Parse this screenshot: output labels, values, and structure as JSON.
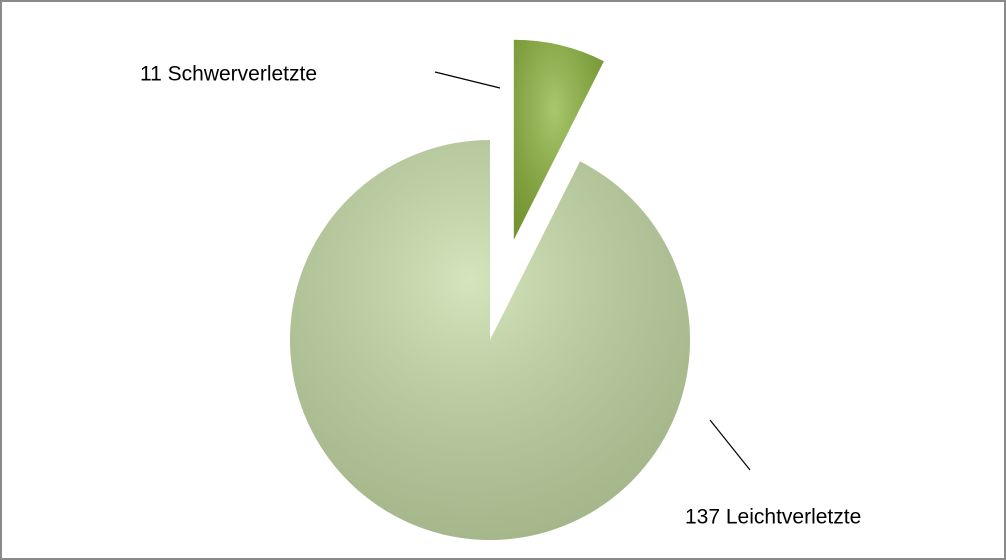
{
  "chart_data": {
    "type": "pie",
    "values": [
      11,
      137
    ],
    "value_labels": [
      "11 Schwerverletzte",
      "137 Leichtverletzte"
    ],
    "colors": [
      "#8db53c",
      "#c6dca6"
    ],
    "explode": [
      true,
      false
    ],
    "start_angle": 0,
    "direction": "clockwise"
  }
}
